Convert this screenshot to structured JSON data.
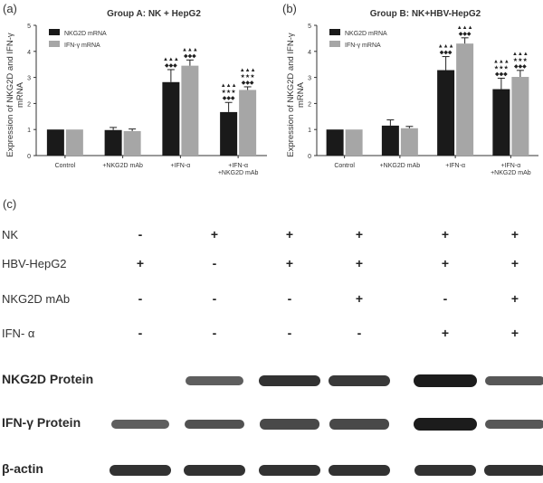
{
  "panels": {
    "a": "(a)",
    "b": "(b)",
    "c": "(c)"
  },
  "chart_data": [
    {
      "type": "bar",
      "title": "Group A: NK + HepG2",
      "ylabel": "Expression of NKG2D and IFN-γ mRNA",
      "categories": [
        "Control",
        "+NKG2D mAb",
        "+IFN-α",
        "+IFN-α +NKG2D mAb"
      ],
      "ylim": [
        0,
        5
      ],
      "yticks": [
        0,
        1,
        2,
        3,
        4,
        5
      ],
      "series": [
        {
          "name": "NKG2D mRNA",
          "color": "#1a1a1a",
          "values": [
            1.0,
            0.98,
            2.82,
            1.67
          ],
          "errors": [
            0.0,
            0.1,
            0.48,
            0.37
          ]
        },
        {
          "name": "IFN-γ mRNA",
          "color": "#a6a6a6",
          "values": [
            1.0,
            0.94,
            3.45,
            2.52
          ],
          "errors": [
            0.0,
            0.08,
            0.22,
            0.12
          ]
        }
      ],
      "annotations": [
        [
          "",
          ""
        ],
        [
          "",
          ""
        ],
        [
          "▲▲▲\n◆◆◆",
          "▲▲▲\n◆◆◆"
        ],
        [
          "▲▲▲\n★★★\n◆◆◆",
          "▲▲▲\n★★★\n◆◆◆"
        ]
      ],
      "legend": "top-left",
      "grid": false
    },
    {
      "type": "bar",
      "title": "Group B: NK+HBV-HepG2",
      "ylabel": "Expression of NKG2D and IFN-γ mRNA",
      "categories": [
        "Control",
        "+NKG2D mAb",
        "+IFN-α",
        "+IFN-α +NKG2D mAb"
      ],
      "ylim": [
        0,
        5
      ],
      "yticks": [
        0,
        1,
        2,
        3,
        4,
        5
      ],
      "series": [
        {
          "name": "NKG2D mRNA",
          "color": "#1a1a1a",
          "values": [
            1.0,
            1.15,
            3.28,
            2.55
          ],
          "errors": [
            0.0,
            0.22,
            0.52,
            0.42
          ]
        },
        {
          "name": "IFN-γ mRNA",
          "color": "#a6a6a6",
          "values": [
            1.0,
            1.05,
            4.3,
            3.02
          ],
          "errors": [
            0.0,
            0.07,
            0.22,
            0.25
          ]
        }
      ],
      "annotations": [
        [
          "",
          ""
        ],
        [
          "",
          ""
        ],
        [
          "▲▲▲\n◆◆◆",
          "▲▲▲\n◆◆◆"
        ],
        [
          "▲▲▲\n★★★\n◆◆◆",
          "▲▲▲\n★★★\n◆◆◆"
        ]
      ],
      "legend": "top-left",
      "grid": false
    }
  ],
  "blot": {
    "conditions": [
      {
        "label": "NK",
        "signs": [
          "-",
          "+",
          "+",
          "+",
          "+",
          "+"
        ]
      },
      {
        "label": "HBV-HepG2",
        "signs": [
          "+",
          "-",
          "+",
          "+",
          "+",
          "+"
        ]
      },
      {
        "label": "NKG2D mAb",
        "signs": [
          "-",
          "-",
          "-",
          "+",
          "-",
          "+"
        ]
      },
      {
        "label": "IFN- α",
        "signs": [
          "-",
          "-",
          "-",
          "-",
          "+",
          "+"
        ]
      }
    ],
    "proteins": [
      {
        "label": "NKG2D Protein",
        "intensity": [
          0,
          0.55,
          0.85,
          0.8,
          1.0,
          0.6
        ]
      },
      {
        "label": "IFN-γ  Protein",
        "intensity": [
          0.55,
          0.65,
          0.7,
          0.7,
          1.0,
          0.6
        ]
      },
      {
        "label": "β-actin",
        "intensity": [
          0.85,
          0.85,
          0.85,
          0.85,
          0.85,
          0.85
        ]
      }
    ]
  }
}
